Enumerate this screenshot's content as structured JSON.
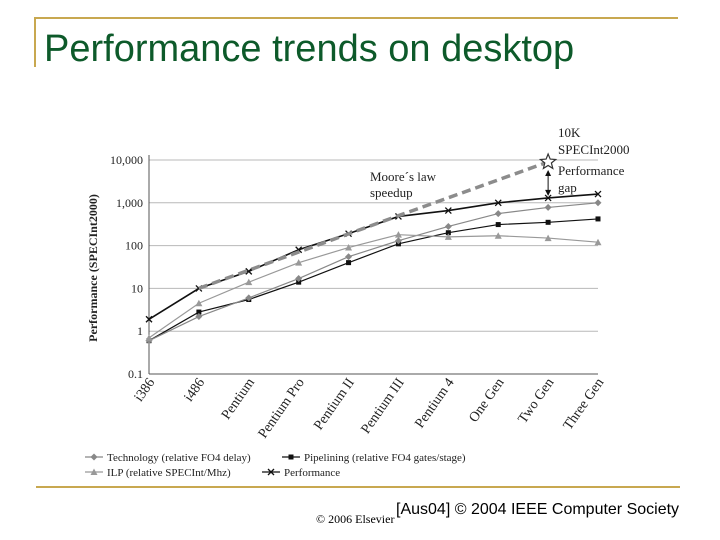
{
  "slide": {
    "title": "Performance trends on desktop",
    "copyright": "© 2006 Elsevier",
    "citation": "[Aus04] © 2004 IEEE Computer Society"
  },
  "colors": {
    "title": "#0d5a2a",
    "rule": "#c8a850",
    "series_dark": "#111111",
    "series_mid": "#888888",
    "series_light": "#999999",
    "moores_law": "#8c8c8c"
  },
  "chart_data": {
    "type": "line",
    "ylabel": "Performance (SPECInt2000)",
    "xlabel": "",
    "y_scale": "log",
    "ylim": [
      0.1,
      10000
    ],
    "y_tick_labels": [
      "0.1",
      "1",
      "10",
      "100",
      "1,000",
      "10,000"
    ],
    "y_tick_values": [
      0.1,
      1,
      10,
      100,
      1000,
      10000
    ],
    "grid": "horizontal",
    "categories": [
      "i386",
      "i486",
      "Pentium",
      "Pentium Pro",
      "Pentium II",
      "Pentium III",
      "Pentium 4",
      "One Gen",
      "Two Gen",
      "Three Gen"
    ],
    "series": [
      {
        "name": "Performance",
        "marker": "x",
        "color": "#111111",
        "values": [
          1.9,
          10,
          25,
          80,
          190,
          480,
          660,
          1000,
          1300,
          1600
        ]
      },
      {
        "name": "Pipelining (relative FO4 gates/stage)",
        "marker": "square",
        "color": "#111111",
        "values": [
          0.6,
          2.8,
          5.5,
          14,
          40,
          110,
          200,
          310,
          350,
          420
        ]
      },
      {
        "name": "Technology (relative FO4 delay)",
        "marker": "diamond",
        "color": "#888888",
        "values": [
          0.6,
          2.2,
          6,
          17,
          55,
          130,
          280,
          560,
          780,
          1000
        ]
      },
      {
        "name": "ILP (relative SPECInt/Mhz)",
        "marker": "triangle",
        "color": "#999999",
        "values": [
          0.7,
          4.5,
          14,
          40,
          90,
          180,
          160,
          170,
          150,
          120
        ]
      }
    ],
    "moores_law": {
      "values": [
        10,
        500,
        9000
      ],
      "at": [
        1,
        5,
        8
      ]
    },
    "annotations": {
      "moores_law": [
        "Moore´s law",
        "speedup"
      ],
      "target": [
        "10K",
        "SPECInt2000"
      ],
      "gap": [
        "Performance",
        "gap"
      ]
    },
    "legend_placement": "bottom"
  }
}
